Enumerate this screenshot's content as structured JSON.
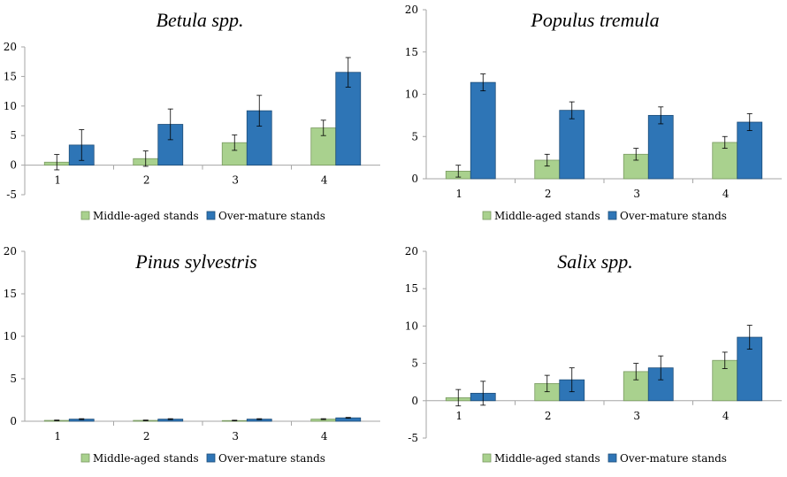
{
  "legend": {
    "middle": "Middle-aged stands",
    "over": "Over-mature stands"
  },
  "colors": {
    "middle": "#a9d18e",
    "over": "#2e75b6",
    "middle_stroke": "#7a9a62",
    "over_stroke": "#1f4e79",
    "axis": "#a6a6a6"
  },
  "chart_data": [
    {
      "type": "bar",
      "title": "Betula spp.",
      "categories": [
        "1",
        "2",
        "3",
        "4"
      ],
      "ylim": [
        -5,
        20
      ],
      "yticks": [
        "-5",
        "0",
        "5",
        "10",
        "15",
        "20"
      ],
      "series": [
        {
          "name": "Middle-aged stands",
          "values": [
            0.5,
            1.1,
            3.8,
            6.3
          ],
          "errors": [
            1.3,
            1.3,
            1.3,
            1.3
          ]
        },
        {
          "name": "Over-mature stands",
          "values": [
            3.4,
            6.9,
            9.2,
            15.7
          ],
          "errors": [
            2.6,
            2.6,
            2.6,
            2.5
          ]
        }
      ]
    },
    {
      "type": "bar",
      "title": "Populus tremula",
      "categories": [
        "1",
        "2",
        "3",
        "4"
      ],
      "ylim": [
        0,
        20
      ],
      "yticks": [
        "0",
        "5",
        "10",
        "15",
        "20"
      ],
      "series": [
        {
          "name": "Middle-aged stands",
          "values": [
            0.9,
            2.2,
            2.9,
            4.3
          ],
          "errors": [
            0.7,
            0.7,
            0.7,
            0.7
          ]
        },
        {
          "name": "Over-mature stands",
          "values": [
            11.4,
            8.1,
            7.5,
            6.7
          ],
          "errors": [
            1.0,
            1.0,
            1.0,
            1.0
          ]
        }
      ]
    },
    {
      "type": "bar",
      "title": "Pinus sylvestris",
      "categories": [
        "1",
        "2",
        "3",
        "4"
      ],
      "ylim": [
        0,
        20
      ],
      "yticks": [
        "0",
        "5",
        "10",
        "15",
        "20"
      ],
      "series": [
        {
          "name": "Middle-aged stands",
          "values": [
            0.1,
            0.1,
            0.08,
            0.25
          ],
          "errors": [
            0.04,
            0.04,
            0.04,
            0.05
          ]
        },
        {
          "name": "Over-mature stands",
          "values": [
            0.25,
            0.25,
            0.25,
            0.4
          ],
          "errors": [
            0.05,
            0.05,
            0.05,
            0.05
          ]
        }
      ]
    },
    {
      "type": "bar",
      "title": "Salix spp.",
      "categories": [
        "1",
        "2",
        "3",
        "4"
      ],
      "ylim": [
        -5,
        20
      ],
      "yticks": [
        "-5",
        "0",
        "5",
        "10",
        "15",
        "20"
      ],
      "series": [
        {
          "name": "Middle-aged stands",
          "values": [
            0.4,
            2.3,
            3.9,
            5.4
          ],
          "errors": [
            1.1,
            1.1,
            1.1,
            1.1
          ]
        },
        {
          "name": "Over-mature stands",
          "values": [
            1.0,
            2.8,
            4.4,
            8.5
          ],
          "errors": [
            1.6,
            1.6,
            1.6,
            1.6
          ]
        }
      ]
    }
  ]
}
